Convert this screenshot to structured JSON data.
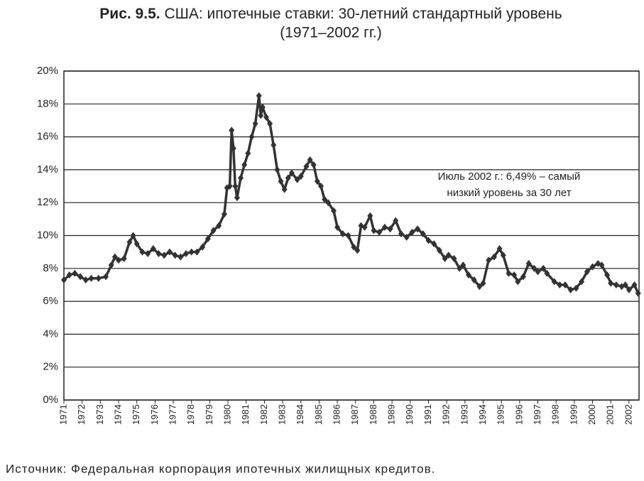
{
  "chart_data": {
    "type": "line",
    "title_prefix": "Рис. 9.5.",
    "title": "США: ипотечные ставки: 30-летний стандартный уровень",
    "subtitle": "(1971–2002 гг.)",
    "annotation": [
      "Июль 2002 г.: 6,49% – самый",
      "низкий уровень за 30 лет"
    ],
    "source": "Источник: Федеральная корпорация ипотечных жилищных кредитов.",
    "color": "#333333",
    "grid": true,
    "xlim": [
      1971,
      2002.55
    ],
    "xticks": [
      1971,
      1972,
      1973,
      1974,
      1975,
      1976,
      1977,
      1978,
      1979,
      1980,
      1981,
      1982,
      1983,
      1984,
      1985,
      1986,
      1987,
      1988,
      1989,
      1990,
      1991,
      1992,
      1993,
      1994,
      1995,
      1996,
      1997,
      1998,
      1999,
      2000,
      2001,
      2002
    ],
    "ylim": [
      0,
      20
    ],
    "yticks": [
      {
        "value": 0,
        "label": "0%"
      },
      {
        "value": 2,
        "label": "2%"
      },
      {
        "value": 4,
        "label": "4%"
      },
      {
        "value": 6,
        "label": "6%"
      },
      {
        "value": 8,
        "label": "8%"
      },
      {
        "value": 10,
        "label": "10%"
      },
      {
        "value": 12,
        "label": "12%"
      },
      {
        "value": 14,
        "label": "14%"
      },
      {
        "value": 16,
        "label": "16%"
      },
      {
        "value": 18,
        "label": "18%"
      },
      {
        "value": 20,
        "label": "20%"
      }
    ],
    "x": [
      1971.0,
      1971.3,
      1971.6,
      1971.9,
      1972.2,
      1972.5,
      1972.9,
      1973.3,
      1973.6,
      1973.8,
      1974.0,
      1974.3,
      1974.6,
      1974.8,
      1975.0,
      1975.3,
      1975.6,
      1975.9,
      1976.2,
      1976.5,
      1976.8,
      1977.1,
      1977.4,
      1977.7,
      1978.0,
      1978.3,
      1978.6,
      1978.9,
      1979.2,
      1979.5,
      1979.8,
      1979.95,
      1980.1,
      1980.2,
      1980.3,
      1980.4,
      1980.5,
      1980.7,
      1980.9,
      1981.1,
      1981.3,
      1981.5,
      1981.7,
      1981.8,
      1981.9,
      1982.1,
      1982.3,
      1982.5,
      1982.7,
      1982.9,
      1983.1,
      1983.3,
      1983.5,
      1983.8,
      1984.0,
      1984.3,
      1984.5,
      1984.7,
      1984.9,
      1985.1,
      1985.3,
      1985.5,
      1985.8,
      1986.0,
      1986.3,
      1986.6,
      1986.9,
      1987.1,
      1987.3,
      1987.5,
      1987.8,
      1988.0,
      1988.3,
      1988.6,
      1988.9,
      1989.2,
      1989.5,
      1989.8,
      1990.1,
      1990.4,
      1990.7,
      1991.0,
      1991.3,
      1991.6,
      1991.9,
      1992.1,
      1992.4,
      1992.7,
      1992.9,
      1993.2,
      1993.5,
      1993.8,
      1994.0,
      1994.3,
      1994.6,
      1994.9,
      1995.1,
      1995.4,
      1995.7,
      1995.9,
      1996.2,
      1996.5,
      1996.8,
      1997.0,
      1997.3,
      1997.5,
      1997.9,
      1998.2,
      1998.5,
      1998.8,
      1999.1,
      1999.4,
      1999.7,
      2000.0,
      2000.3,
      2000.5,
      2000.8,
      2001.0,
      2001.3,
      2001.6,
      2001.8,
      2002.0,
      2002.3,
      2002.5
    ],
    "values": [
      7.3,
      7.6,
      7.7,
      7.5,
      7.3,
      7.4,
      7.4,
      7.5,
      8.2,
      8.7,
      8.5,
      8.6,
      9.6,
      10.0,
      9.5,
      9.0,
      8.9,
      9.2,
      8.9,
      8.8,
      9.0,
      8.8,
      8.7,
      8.9,
      9.0,
      9.0,
      9.3,
      9.8,
      10.3,
      10.6,
      11.3,
      12.9,
      13.0,
      16.4,
      15.3,
      13.0,
      12.3,
      13.5,
      14.3,
      15.0,
      16.0,
      16.8,
      18.5,
      17.3,
      17.8,
      17.2,
      16.8,
      15.5,
      14.0,
      13.3,
      12.8,
      13.5,
      13.8,
      13.4,
      13.6,
      14.2,
      14.6,
      14.3,
      13.3,
      13.0,
      12.2,
      12.0,
      11.5,
      10.5,
      10.1,
      10.0,
      9.3,
      9.1,
      10.6,
      10.5,
      11.2,
      10.3,
      10.2,
      10.5,
      10.4,
      10.9,
      10.1,
      9.9,
      10.2,
      10.4,
      10.1,
      9.7,
      9.5,
      9.1,
      8.6,
      8.8,
      8.6,
      8.0,
      8.2,
      7.6,
      7.3,
      6.9,
      7.1,
      8.5,
      8.7,
      9.2,
      8.8,
      7.7,
      7.6,
      7.2,
      7.5,
      8.3,
      8.0,
      7.8,
      8.0,
      7.7,
      7.2,
      7.0,
      7.0,
      6.7,
      6.8,
      7.2,
      7.8,
      8.1,
      8.3,
      8.2,
      7.6,
      7.1,
      7.0,
      6.9,
      7.0,
      6.7,
      7.0,
      6.49
    ]
  }
}
